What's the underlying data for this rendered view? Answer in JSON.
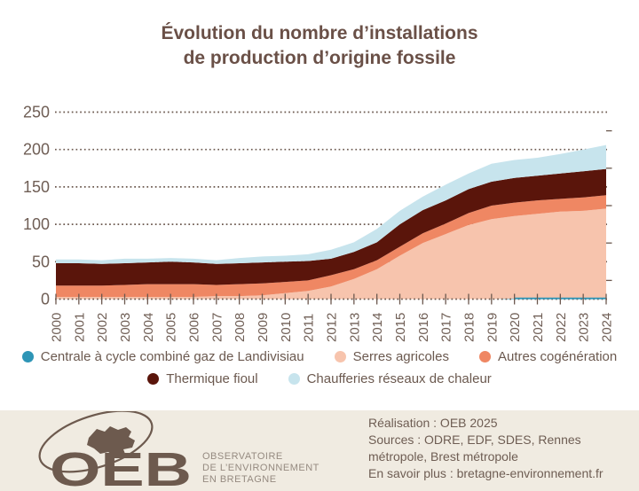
{
  "title": {
    "line1": "Évolution du nombre d’installations",
    "line2": "de production d’origine fossile"
  },
  "chart_data": {
    "type": "area",
    "stacked": true,
    "x": [
      2000,
      2001,
      2002,
      2003,
      2004,
      2005,
      2006,
      2007,
      2008,
      2009,
      2010,
      2011,
      2012,
      2013,
      2014,
      2015,
      2016,
      2017,
      2018,
      2019,
      2020,
      2021,
      2022,
      2023,
      2024
    ],
    "series": [
      {
        "name": "Centrale à cycle combiné gaz de Landivisiau",
        "color": "#2e95b6",
        "values": [
          0,
          0,
          0,
          0,
          0,
          0,
          0,
          0,
          0,
          0,
          0,
          0,
          0,
          0,
          0,
          0,
          0,
          0,
          0,
          0,
          1,
          1,
          1,
          1,
          1
        ]
      },
      {
        "name": "Serres agricoles",
        "color": "#f7c4ad",
        "values": [
          3,
          3,
          3,
          3,
          3,
          3,
          3,
          4,
          4,
          5,
          8,
          11,
          17,
          27,
          40,
          58,
          75,
          87,
          99,
          107,
          110,
          113,
          116,
          117,
          120
        ]
      },
      {
        "name": "Autres cogénération",
        "color": "#ef8763",
        "values": [
          15,
          15,
          15,
          16,
          17,
          17,
          17,
          15,
          16,
          16,
          15,
          14,
          15,
          13,
          12,
          12,
          13,
          14,
          16,
          18,
          18,
          18,
          17,
          18,
          18
        ]
      },
      {
        "name": "Thermique fioul",
        "color": "#5a150b",
        "values": [
          30,
          30,
          29,
          29,
          29,
          30,
          29,
          28,
          28,
          28,
          27,
          26,
          22,
          23,
          24,
          30,
          31,
          31,
          32,
          32,
          33,
          33,
          34,
          35,
          35
        ]
      },
      {
        "name": "Chaufferies réseaux de chaleur",
        "color": "#c7e4ed",
        "values": [
          5,
          5,
          5,
          6,
          5,
          5,
          5,
          5,
          7,
          8,
          8,
          9,
          12,
          13,
          18,
          18,
          18,
          21,
          21,
          24,
          24,
          24,
          26,
          29,
          32
        ]
      }
    ],
    "ylim": [
      0,
      250
    ],
    "yticks": [
      0,
      50,
      100,
      150,
      200,
      250
    ],
    "grid": "dotted-horizontal",
    "legend_position": "bottom",
    "xlabel": "",
    "ylabel": ""
  },
  "footer": {
    "lines": [
      "Réalisation : OEB 2025",
      "Sources : ODRE, EDF, SDES, Rennes",
      "métropole, Brest métropole",
      "En savoir plus : bretagne-environnement.fr"
    ],
    "logo": {
      "acronym": "OEB",
      "line1": "OBSERVATOIRE",
      "line2": "DE L’ENVIRONNEMENT",
      "line3": "EN BRETAGNE",
      "logo_color": "#6d5a4e"
    }
  }
}
